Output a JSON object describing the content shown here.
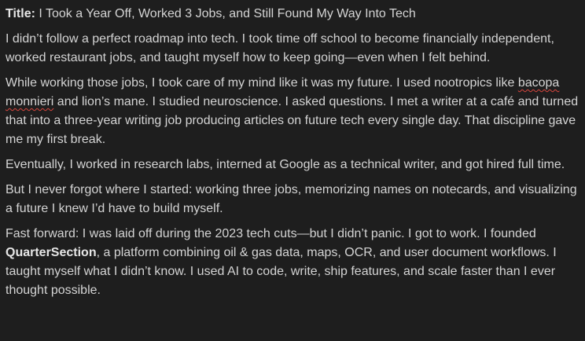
{
  "title": {
    "label": "Title:",
    "text": " I Took a Year Off, Worked 3 Jobs, and Still Found My Way Into Tech"
  },
  "paragraphs": {
    "p1": "I didn’t follow a perfect roadmap into tech. I took time off school to become financially independent, worked restaurant jobs, and taught myself how to keep going—even when I felt behind.",
    "p2_a": "While working those jobs, I took care of my mind like it was my future. I used nootropics like ",
    "p2_misspelled_a": "bacopa",
    "p2_space": " ",
    "p2_misspelled_b": "monnieri",
    "p2_b": " and lion’s mane. I studied neuroscience. I asked questions. I met a writer at a café and turned that into a three-year writing job producing articles on future tech every single day. That discipline gave me my first break.",
    "p3": "Eventually, I worked in research labs, interned at Google as a technical writer, and got hired full time.",
    "p4": "But I never forgot where I started: working three jobs, memorizing names on notecards, and visualizing a future I knew I’d have to build myself.",
    "p5_a": "Fast forward: I was laid off during the 2023 tech cuts—but I didn’t panic. I got to work. I founded ",
    "p5_bold": "QuarterSection",
    "p5_b": ", a platform combining oil & gas data, maps, OCR, and user document workflows. I taught myself what I didn’t know. I used AI to code, write, ship features, and scale faster than I ever thought possible."
  },
  "colors": {
    "background": "#1e1e1e",
    "text": "#d4d4d4",
    "spellcheck_underline": "#d9453d"
  }
}
